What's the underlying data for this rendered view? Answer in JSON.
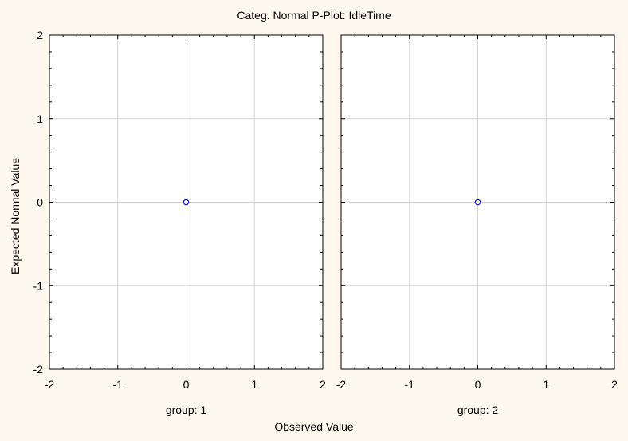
{
  "chart_data": {
    "type": "scatter",
    "title": "Categ. Normal P-Plot: IdleTime",
    "xlabel": "Observed Value",
    "ylabel": "Expected Normal Value",
    "xlim": [
      -2,
      2
    ],
    "ylim": [
      -2,
      2
    ],
    "x_ticks": [
      "-2",
      "-1",
      "0",
      "1",
      "2"
    ],
    "y_ticks": [
      "2",
      "1",
      "0",
      "-1",
      "-2"
    ],
    "grid": true,
    "panels": [
      {
        "label": "group: 1",
        "points": [
          {
            "x": 0,
            "y": 0
          }
        ]
      },
      {
        "label": "group: 2",
        "points": [
          {
            "x": 0,
            "y": 0
          }
        ]
      }
    ],
    "colors": {
      "background": "#fdf9ee",
      "plot_background": "#ffffff",
      "grid": "#d4d4d4",
      "marker": "#0000c0"
    }
  }
}
